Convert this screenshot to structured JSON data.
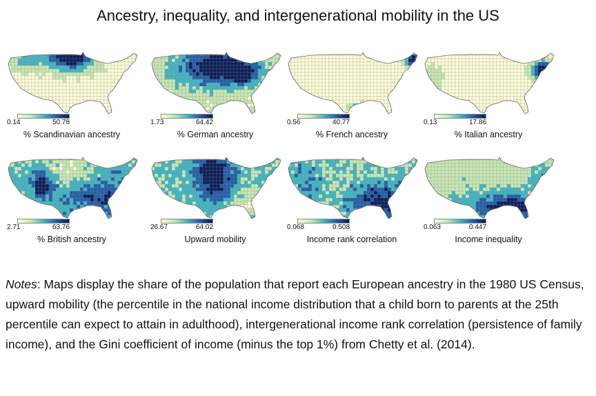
{
  "title": "Ancestry, inequality, and intergenerational mobility in the US",
  "palette": {
    "low": "#ffffd9",
    "mid1": "#c7e9b4",
    "mid2": "#41b6c4",
    "mid3": "#225ea8",
    "high": "#081d58",
    "borders": "#8a8a8a"
  },
  "maps": [
    {
      "key": "scandinavian",
      "caption": "% Scandinavian ancestry",
      "min": "0.14",
      "max": "50.78",
      "pattern": "north"
    },
    {
      "key": "german",
      "caption": "% German ancestry",
      "min": "1.73",
      "max": "64.42",
      "pattern": "midwest"
    },
    {
      "key": "french",
      "caption": "% French ancestry",
      "min": "0.56",
      "max": "40.77",
      "pattern": "maine-louisiana"
    },
    {
      "key": "italian",
      "caption": "% Italian ancestry",
      "min": "0.13",
      "max": "17.86",
      "pattern": "northeast"
    },
    {
      "key": "british",
      "caption": "% British ancestry",
      "min": "2.71",
      "max": "63.76",
      "pattern": "utah-south"
    },
    {
      "key": "upward",
      "caption": "Upward mobility",
      "min": "26.67",
      "max": "64.02",
      "pattern": "plains"
    },
    {
      "key": "rankcorr",
      "caption": "Income rank correlation",
      "min": "0.068",
      "max": "0.508",
      "pattern": "southeast"
    },
    {
      "key": "inequality",
      "caption": "Income inequality",
      "min": "0.063",
      "max": "0.447",
      "pattern": "south"
    }
  ],
  "notes": {
    "label": "Notes",
    "text": ": Maps display the share of the population that report each European ancestry in the 1980 US Census, upward mobility (the percentile in the national income distribution that a child born to parents at the 25th percentile can expect to attain in adulthood), intergenerational income rank correlation (persistence of family income), and the Gini coefficient of income (minus the top 1%) from Chetty et al. (2014)."
  }
}
